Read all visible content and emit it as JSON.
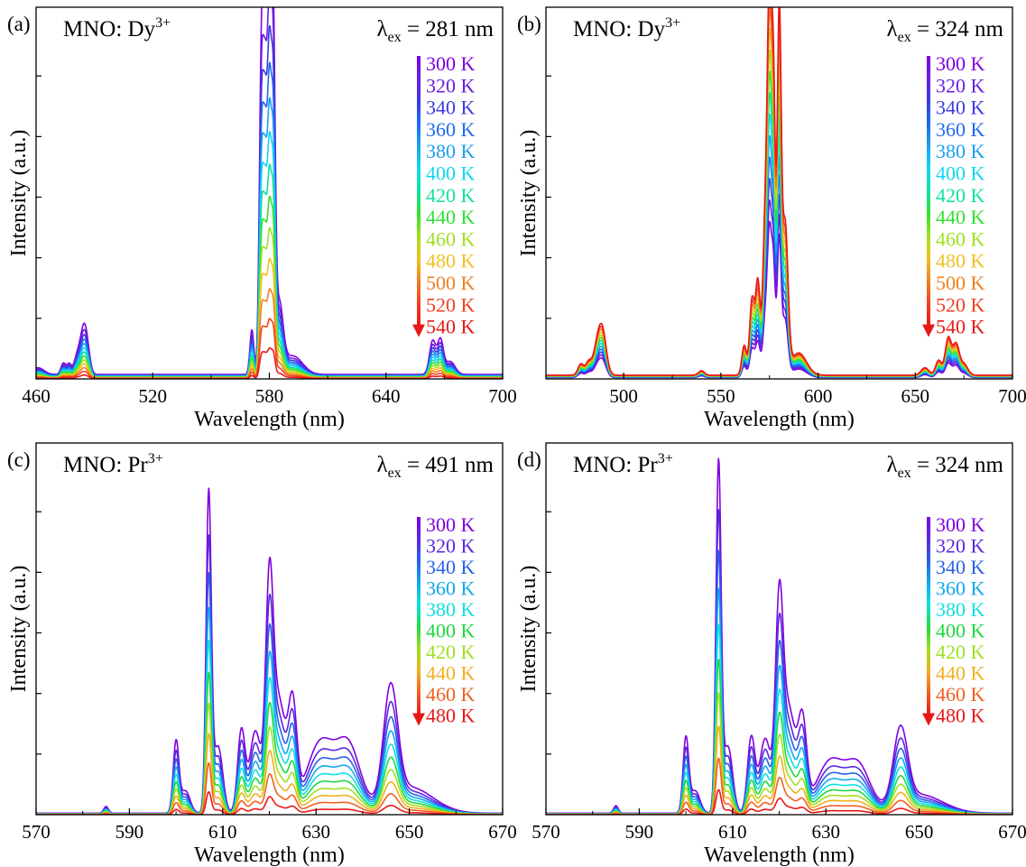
{
  "chart_data": [
    {
      "type": "line",
      "panel_label": "(a)",
      "title": "MNO: Dy",
      "title_sup": "3+",
      "excitation": {
        "symbol": "λ",
        "sub": "ex",
        "text": " = 281 nm"
      },
      "xlabel": "Wavelength (nm)",
      "ylabel": "Intensity (a.u.)",
      "xlim": [
        460,
        700
      ],
      "xticks": [
        460,
        520,
        580,
        640,
        700
      ],
      "ylim": [
        0,
        1.0
      ],
      "grid": false,
      "legend_position": "right",
      "trend": "decrease",
      "temperatures": [
        "300 K",
        "320 K",
        "340 K",
        "360 K",
        "380 K",
        "400 K",
        "420 K",
        "440 K",
        "460 K",
        "480 K",
        "500 K",
        "520 K",
        "540 K"
      ],
      "colors": [
        "#8000e0",
        "#6a1ee0",
        "#3a3ae0",
        "#1e6af0",
        "#1aa0f0",
        "#10d8f0",
        "#10e0a0",
        "#30e030",
        "#a0e020",
        "#f0c020",
        "#f08020",
        "#f04020",
        "#e81818"
      ],
      "base_peaks": [
        {
          "c": 461,
          "w": 3,
          "a": 0.018
        },
        {
          "c": 474,
          "w": 1.2,
          "a": 0.03
        },
        {
          "c": 477,
          "w": 1.2,
          "a": 0.028
        },
        {
          "c": 481,
          "w": 1.5,
          "a": 0.045
        },
        {
          "c": 484,
          "w": 1.6,
          "a": 0.09
        },
        {
          "c": 486,
          "w": 1.6,
          "a": 0.075
        },
        {
          "c": 571,
          "w": 1.0,
          "a": 0.12
        },
        {
          "c": 576,
          "w": 1.1,
          "a": 0.88
        },
        {
          "c": 578,
          "w": 1.0,
          "a": 0.72
        },
        {
          "c": 580,
          "w": 1.0,
          "a": 0.95
        },
        {
          "c": 582,
          "w": 1.0,
          "a": 0.87
        },
        {
          "c": 585,
          "w": 2.0,
          "a": 0.18
        },
        {
          "c": 592,
          "w": 5.0,
          "a": 0.05
        },
        {
          "c": 664,
          "w": 1.6,
          "a": 0.09
        },
        {
          "c": 668,
          "w": 1.5,
          "a": 0.09
        },
        {
          "c": 673,
          "w": 2.5,
          "a": 0.035
        }
      ],
      "baseline": 0.012
    },
    {
      "type": "line",
      "panel_label": "(b)",
      "title": "MNO: Dy",
      "title_sup": "3+",
      "excitation": {
        "symbol": "λ",
        "sub": "ex",
        "text": " = 324 nm"
      },
      "xlabel": "Wavelength (nm)",
      "ylabel": "Intensity (a.u.)",
      "xlim": [
        460,
        700
      ],
      "xticks": [
        500,
        550,
        600,
        650,
        700
      ],
      "ylim": [
        0,
        1.0
      ],
      "grid": false,
      "legend_position": "right",
      "trend": "increase",
      "temperatures": [
        "300 K",
        "320 K",
        "340 K",
        "360 K",
        "380 K",
        "400 K",
        "420 K",
        "440 K",
        "460 K",
        "480 K",
        "500 K",
        "520 K",
        "540 K"
      ],
      "colors": [
        "#8000e0",
        "#6a1ee0",
        "#3a3ae0",
        "#1e6af0",
        "#1aa0f0",
        "#10d8f0",
        "#10e0a0",
        "#30e030",
        "#a0e020",
        "#f0c020",
        "#f08020",
        "#f04020",
        "#e81818"
      ],
      "base_peaks": [
        {
          "c": 478,
          "w": 1.5,
          "a": 0.03
        },
        {
          "c": 482,
          "w": 1.5,
          "a": 0.035
        },
        {
          "c": 486,
          "w": 1.8,
          "a": 0.06
        },
        {
          "c": 489,
          "w": 2.0,
          "a": 0.12
        },
        {
          "c": 540,
          "w": 1.5,
          "a": 0.012
        },
        {
          "c": 562,
          "w": 1.2,
          "a": 0.08
        },
        {
          "c": 566,
          "w": 1.2,
          "a": 0.2
        },
        {
          "c": 569,
          "w": 1.2,
          "a": 0.25
        },
        {
          "c": 573,
          "w": 1.3,
          "a": 0.45
        },
        {
          "c": 575,
          "w": 1.0,
          "a": 0.86
        },
        {
          "c": 577,
          "w": 1.0,
          "a": 0.78
        },
        {
          "c": 580,
          "w": 1.0,
          "a": 0.95
        },
        {
          "c": 583,
          "w": 1.5,
          "a": 0.4
        },
        {
          "c": 590,
          "w": 4.0,
          "a": 0.06
        },
        {
          "c": 655,
          "w": 2.0,
          "a": 0.02
        },
        {
          "c": 662,
          "w": 1.5,
          "a": 0.04
        },
        {
          "c": 667,
          "w": 1.6,
          "a": 0.1
        },
        {
          "c": 671,
          "w": 1.6,
          "a": 0.08
        },
        {
          "c": 675,
          "w": 2.0,
          "a": 0.03
        }
      ],
      "baseline": 0.01
    },
    {
      "type": "line",
      "panel_label": "(c)",
      "title": "MNO: Pr",
      "title_sup": "3+",
      "excitation": {
        "symbol": "λ",
        "sub": "ex",
        "text": " = 491 nm"
      },
      "xlabel": "Wavelength (nm)",
      "ylabel": "Intensity (a.u.)",
      "xlim": [
        570,
        670
      ],
      "xticks": [
        570,
        590,
        610,
        630,
        650,
        670
      ],
      "ylim": [
        0,
        1.0
      ],
      "grid": false,
      "legend_position": "right",
      "trend": "decrease",
      "temperatures": [
        "300 K",
        "320 K",
        "340 K",
        "360 K",
        "380 K",
        "400 K",
        "420 K",
        "440 K",
        "460 K",
        "480 K"
      ],
      "colors": [
        "#8000e0",
        "#5a28e0",
        "#2860e8",
        "#10a8f0",
        "#10e0e0",
        "#20d840",
        "#a0e020",
        "#f0b020",
        "#f06020",
        "#e81818"
      ],
      "base_peaks": [
        {
          "c": 585,
          "w": 0.5,
          "a": 0.018
        },
        {
          "c": 600,
          "w": 0.6,
          "a": 0.19
        },
        {
          "c": 602,
          "w": 1.0,
          "a": 0.06
        },
        {
          "c": 607,
          "w": 0.55,
          "a": 0.85
        },
        {
          "c": 609,
          "w": 1.0,
          "a": 0.18
        },
        {
          "c": 614,
          "w": 0.8,
          "a": 0.22
        },
        {
          "c": 617,
          "w": 1.2,
          "a": 0.22
        },
        {
          "c": 620,
          "w": 0.8,
          "a": 0.55
        },
        {
          "c": 622,
          "w": 1.5,
          "a": 0.3
        },
        {
          "c": 625,
          "w": 0.9,
          "a": 0.26
        },
        {
          "c": 631,
          "w": 3.0,
          "a": 0.19
        },
        {
          "c": 637,
          "w": 2.5,
          "a": 0.17
        },
        {
          "c": 646,
          "w": 1.5,
          "a": 0.3
        },
        {
          "c": 650,
          "w": 5.0,
          "a": 0.07
        }
      ],
      "baseline": 0.004
    },
    {
      "type": "line",
      "panel_label": "(d)",
      "title": "MNO: Pr",
      "title_sup": "3+",
      "excitation": {
        "symbol": "λ",
        "sub": "ex",
        "text": " = 324 nm"
      },
      "xlabel": "Wavelength (nm)",
      "ylabel": "Intensity (a.u.)",
      "xlim": [
        570,
        670
      ],
      "xticks": [
        570,
        590,
        610,
        630,
        650,
        670
      ],
      "ylim": [
        0,
        1.0
      ],
      "grid": false,
      "legend_position": "right",
      "trend": "decrease",
      "temperatures": [
        "300 K",
        "320 K",
        "340 K",
        "360 K",
        "380 K",
        "400 K",
        "420 K",
        "440 K",
        "460 K",
        "480 K"
      ],
      "colors": [
        "#8000e0",
        "#5a28e0",
        "#2860e8",
        "#10a8f0",
        "#10e0e0",
        "#20d840",
        "#a0e020",
        "#f0b020",
        "#f06020",
        "#e81818"
      ],
      "base_peaks": [
        {
          "c": 585,
          "w": 0.5,
          "a": 0.02
        },
        {
          "c": 600,
          "w": 0.6,
          "a": 0.2
        },
        {
          "c": 602,
          "w": 1.0,
          "a": 0.06
        },
        {
          "c": 607,
          "w": 0.55,
          "a": 0.93
        },
        {
          "c": 609,
          "w": 1.0,
          "a": 0.18
        },
        {
          "c": 614,
          "w": 0.8,
          "a": 0.2
        },
        {
          "c": 617,
          "w": 1.2,
          "a": 0.2
        },
        {
          "c": 620,
          "w": 0.8,
          "a": 0.5
        },
        {
          "c": 622,
          "w": 1.5,
          "a": 0.28
        },
        {
          "c": 625,
          "w": 0.9,
          "a": 0.22
        },
        {
          "c": 631,
          "w": 3.0,
          "a": 0.14
        },
        {
          "c": 637,
          "w": 2.5,
          "a": 0.12
        },
        {
          "c": 646,
          "w": 1.5,
          "a": 0.2
        },
        {
          "c": 650,
          "w": 5.0,
          "a": 0.05
        }
      ],
      "baseline": 0.004
    }
  ]
}
